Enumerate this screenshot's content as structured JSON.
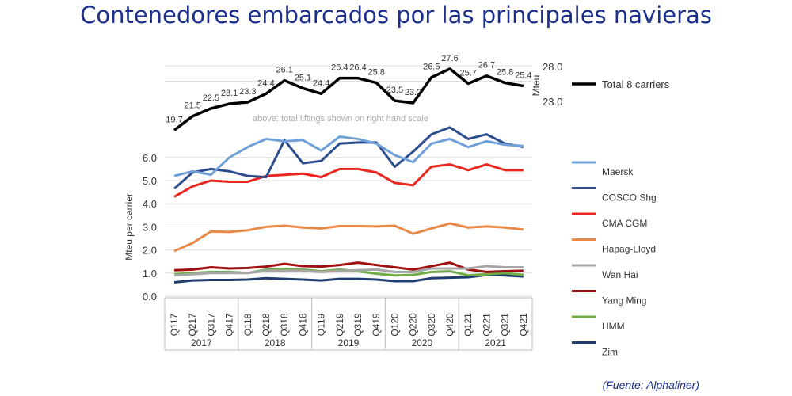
{
  "title": "Contenedores embarcados por las principales navieras",
  "source": "(Fuente: Alphaliner)",
  "chart_data": {
    "type": "line",
    "title": "Contenedores embarcados por las principales navieras",
    "annotation": "above: total liftings shown on right hand scale",
    "ylabel": "Mteu per carrier",
    "ylabel_right": "Mteu",
    "ylim": [
      0,
      6.0
    ],
    "yticks": [
      "0.0",
      "1.0",
      "2.0",
      "3.0",
      "4.0",
      "5.0",
      "6.0"
    ],
    "yticks_right": [
      "28.0",
      "23.0"
    ],
    "grid": true,
    "legend_placement": "right",
    "categories": [
      "Q117",
      "Q217",
      "Q317",
      "Q417",
      "Q118",
      "Q218",
      "Q318",
      "Q418",
      "Q119",
      "Q219",
      "Q319",
      "Q419",
      "Q120",
      "Q220",
      "Q320",
      "Q420",
      "Q121",
      "Q221",
      "Q321",
      "Q421"
    ],
    "years": [
      "2017",
      "2018",
      "2019",
      "2020",
      "2021"
    ],
    "total": {
      "name": "Total 8 carriers",
      "color": "#000000",
      "values": [
        19.7,
        21.5,
        22.5,
        23.1,
        23.3,
        24.4,
        26.1,
        25.1,
        24.4,
        26.4,
        26.4,
        25.8,
        23.5,
        23.2,
        26.5,
        27.6,
        25.7,
        26.7,
        25.8,
        25.4
      ],
      "labels": [
        "19.7",
        "21.5",
        "22.5",
        "23.1",
        "23.3",
        "24.4",
        "26.1",
        "25.1",
        "24.4",
        "26.4",
        "26.4",
        "25.8",
        "23.5",
        "23.2",
        "26.5",
        "27.6",
        "25.7",
        "26.7",
        "25.8",
        "25.4"
      ]
    },
    "series": [
      {
        "name": "Maersk",
        "color": "#6fa0d8",
        "values": [
          5.2,
          5.4,
          5.25,
          6.0,
          6.45,
          6.8,
          6.7,
          6.75,
          6.3,
          6.9,
          6.8,
          6.6,
          6.1,
          5.8,
          6.6,
          6.8,
          6.45,
          6.7,
          6.55,
          6.5
        ]
      },
      {
        "name": "COSCO Shg",
        "color": "#2c4e8f",
        "values": [
          4.65,
          5.35,
          5.5,
          5.4,
          5.2,
          5.15,
          6.75,
          5.75,
          5.85,
          6.6,
          6.65,
          6.65,
          5.6,
          6.25,
          7.0,
          7.3,
          6.8,
          7.0,
          6.6,
          6.45
        ]
      },
      {
        "name": "CMA CGM",
        "color": "#e8281e",
        "values": [
          4.3,
          4.75,
          5.0,
          4.95,
          4.95,
          5.2,
          5.25,
          5.3,
          5.15,
          5.5,
          5.5,
          5.35,
          4.9,
          4.8,
          5.6,
          5.7,
          5.45,
          5.7,
          5.45,
          5.45
        ]
      },
      {
        "name": "Hapag-Lloyd",
        "color": "#e8894a",
        "values": [
          1.95,
          2.3,
          2.8,
          2.78,
          2.85,
          3.0,
          3.05,
          2.97,
          2.93,
          3.03,
          3.03,
          3.02,
          3.05,
          2.7,
          2.93,
          3.15,
          2.97,
          3.02,
          2.97,
          2.88
        ]
      },
      {
        "name": "Wan Hai",
        "color": "#a6a6a6",
        "values": [
          0.9,
          0.95,
          1.0,
          1.0,
          1.0,
          1.1,
          1.1,
          1.1,
          1.05,
          1.1,
          1.12,
          1.15,
          1.05,
          1.05,
          1.2,
          1.2,
          1.2,
          1.3,
          1.25,
          1.25
        ]
      },
      {
        "name": "Yang Ming",
        "color": "#a01010",
        "values": [
          1.12,
          1.15,
          1.25,
          1.2,
          1.22,
          1.28,
          1.4,
          1.3,
          1.28,
          1.35,
          1.45,
          1.35,
          1.25,
          1.15,
          1.3,
          1.45,
          1.15,
          1.05,
          1.08,
          1.1
        ]
      },
      {
        "name": "HMM",
        "color": "#70ad47",
        "values": [
          0.95,
          1.0,
          1.05,
          1.05,
          1.0,
          1.15,
          1.18,
          1.15,
          1.08,
          1.15,
          1.08,
          0.97,
          0.9,
          0.92,
          1.05,
          1.08,
          0.9,
          0.95,
          1.0,
          0.92
        ]
      },
      {
        "name": "Zim",
        "color": "#1f3d6e",
        "values": [
          0.6,
          0.68,
          0.7,
          0.7,
          0.72,
          0.78,
          0.75,
          0.72,
          0.68,
          0.75,
          0.75,
          0.72,
          0.65,
          0.65,
          0.78,
          0.8,
          0.82,
          0.92,
          0.9,
          0.85
        ]
      }
    ]
  }
}
